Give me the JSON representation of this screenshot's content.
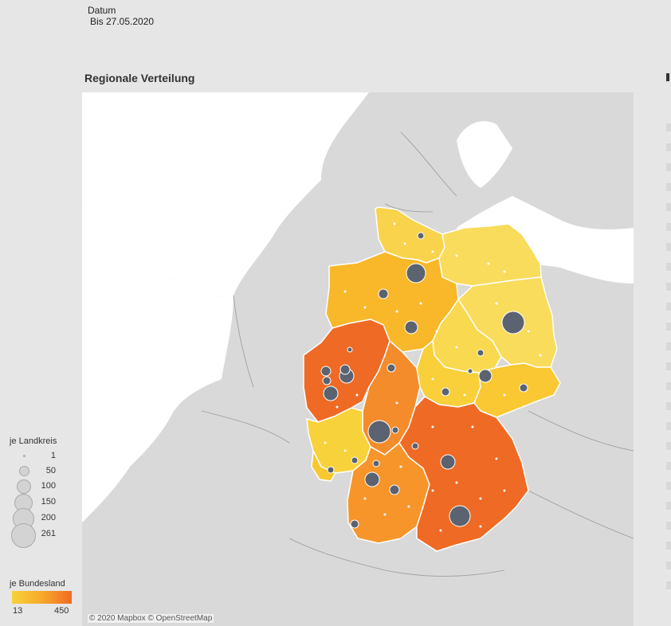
{
  "filter": {
    "title": "Datum",
    "value": "Bis 27.05.2020"
  },
  "section": {
    "title": "Regionale Verteilung"
  },
  "map": {
    "attribution": "© 2020 Mapbox © OpenStreetMap",
    "colors": {
      "low": "#f8d23a",
      "mid": "#f7a92a",
      "high": "#ef6a24",
      "bubble": "#5b6370",
      "land": "#d9d9d9",
      "sea": "#ffffff"
    },
    "states": [
      {
        "name": "Schleswig-Holstein",
        "fill": "#f9d34c"
      },
      {
        "name": "Mecklenburg-Vorpommern",
        "fill": "#f9dc5c"
      },
      {
        "name": "Niedersachsen",
        "fill": "#f8b82a"
      },
      {
        "name": "Brandenburg",
        "fill": "#f9dc5c"
      },
      {
        "name": "Sachsen-Anhalt",
        "fill": "#f9d94f"
      },
      {
        "name": "Nordrhein-Westfalen",
        "fill": "#ef6a24"
      },
      {
        "name": "Hessen",
        "fill": "#f48c2c"
      },
      {
        "name": "Thüringen",
        "fill": "#f9cf3a"
      },
      {
        "name": "Sachsen",
        "fill": "#f9c832"
      },
      {
        "name": "Rheinland-Pfalz",
        "fill": "#f8d23a"
      },
      {
        "name": "Saarland",
        "fill": "#f8c830"
      },
      {
        "name": "Baden-Württemberg",
        "fill": "#f7952a"
      },
      {
        "name": "Bayern",
        "fill": "#ef6a24"
      }
    ]
  },
  "size_legend": {
    "title": "je Landkreis",
    "items": [
      {
        "label": "1",
        "value": 1
      },
      {
        "label": "50",
        "value": 50
      },
      {
        "label": "100",
        "value": 100
      },
      {
        "label": "150",
        "value": 150
      },
      {
        "label": "200",
        "value": 200
      },
      {
        "label": "261",
        "value": 261
      }
    ]
  },
  "color_legend": {
    "title": "je Bundesland",
    "min": "13",
    "max": "450"
  }
}
